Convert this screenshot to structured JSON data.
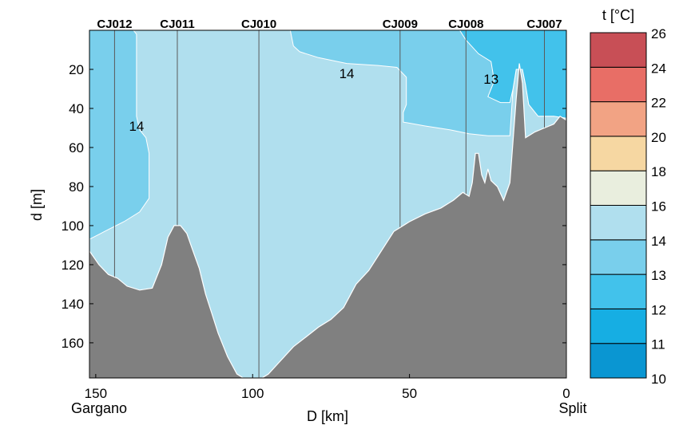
{
  "chart_data": {
    "type": "section contour",
    "xlabel": "D [km]",
    "ylabel": "d [m]",
    "xlim": [
      152,
      0
    ],
    "ylim": [
      0,
      178
    ],
    "xticks": [
      150,
      100,
      50,
      0
    ],
    "yticks": [
      20,
      40,
      60,
      80,
      100,
      120,
      140,
      160
    ],
    "endpoint_labels": {
      "left": "Gargano",
      "right": "Split"
    },
    "stations": [
      {
        "name": "CJ012",
        "x": 144
      },
      {
        "name": "CJ011",
        "x": 124
      },
      {
        "name": "CJ010",
        "x": 98
      },
      {
        "name": "CJ009",
        "x": 53
      },
      {
        "name": "CJ008",
        "x": 32
      },
      {
        "name": "CJ007",
        "x": 7
      }
    ],
    "contour_labels": [
      {
        "text": "14",
        "x": 70,
        "y": 22
      },
      {
        "text": "13",
        "x": 24,
        "y": 25
      },
      {
        "text": "14",
        "x": 137,
        "y": 49
      }
    ],
    "bathymetry": [
      [
        152,
        113
      ],
      [
        149,
        120
      ],
      [
        146,
        125
      ],
      [
        143,
        127
      ],
      [
        140,
        131
      ],
      [
        136,
        133
      ],
      [
        132,
        132
      ],
      [
        129,
        120
      ],
      [
        127,
        106
      ],
      [
        125,
        100
      ],
      [
        123,
        100
      ],
      [
        121,
        104
      ],
      [
        119,
        113
      ],
      [
        117,
        122
      ],
      [
        115,
        135
      ],
      [
        113,
        145
      ],
      [
        111,
        155
      ],
      [
        108,
        167
      ],
      [
        105,
        176
      ],
      [
        103,
        178
      ],
      [
        97,
        178
      ],
      [
        95,
        176
      ],
      [
        91,
        169
      ],
      [
        87,
        162
      ],
      [
        83,
        157
      ],
      [
        79,
        152
      ],
      [
        75,
        148
      ],
      [
        71,
        142
      ],
      [
        67,
        130
      ],
      [
        63,
        123
      ],
      [
        59,
        113
      ],
      [
        55,
        103
      ],
      [
        50,
        98
      ],
      [
        45,
        94
      ],
      [
        40,
        91
      ],
      [
        36,
        87
      ],
      [
        33,
        83
      ],
      [
        31,
        85
      ],
      [
        30,
        78
      ],
      [
        29,
        63
      ],
      [
        28,
        63
      ],
      [
        27,
        74
      ],
      [
        26,
        78
      ],
      [
        25,
        71
      ],
      [
        24,
        77
      ],
      [
        22,
        80
      ],
      [
        20,
        87
      ],
      [
        18,
        78
      ],
      [
        16,
        35
      ],
      [
        15,
        17
      ],
      [
        14,
        27
      ],
      [
        13,
        55
      ],
      [
        10,
        52
      ],
      [
        7,
        50
      ],
      [
        4,
        48
      ],
      [
        2,
        44
      ],
      [
        0,
        46
      ]
    ],
    "isotherm_14": [
      [
        152,
        107
      ],
      [
        146,
        102
      ],
      [
        141,
        98
      ],
      [
        136,
        93
      ],
      [
        133,
        86
      ],
      [
        133,
        63
      ],
      [
        134,
        55
      ],
      [
        136,
        51
      ],
      [
        137,
        44
      ],
      [
        137,
        24
      ],
      [
        137,
        2
      ],
      [
        138,
        0
      ],
      [
        152,
        0
      ]
    ],
    "isotherm_14_right": [
      [
        88,
        0
      ],
      [
        87,
        8
      ],
      [
        85,
        11
      ],
      [
        79,
        14
      ],
      [
        70,
        17
      ],
      [
        60,
        18
      ],
      [
        54,
        19
      ],
      [
        51,
        24
      ],
      [
        51,
        38
      ],
      [
        52,
        42
      ],
      [
        52,
        47
      ],
      [
        45,
        49
      ],
      [
        37,
        51
      ],
      [
        31,
        53
      ],
      [
        25,
        54
      ],
      [
        18,
        54
      ],
      [
        17,
        30
      ],
      [
        16,
        20
      ],
      [
        14,
        20
      ],
      [
        13,
        28
      ],
      [
        12,
        38
      ],
      [
        9,
        44
      ],
      [
        4,
        44
      ],
      [
        0,
        45
      ],
      [
        0,
        0
      ]
    ],
    "isotherm_13": [
      [
        34,
        0
      ],
      [
        32,
        5
      ],
      [
        28,
        12
      ],
      [
        24,
        16
      ],
      [
        23,
        26
      ],
      [
        24,
        30
      ],
      [
        25,
        34
      ],
      [
        21,
        37
      ],
      [
        18,
        37
      ],
      [
        17,
        30
      ],
      [
        16,
        20
      ],
      [
        14,
        20
      ],
      [
        13,
        28
      ],
      [
        12,
        38
      ],
      [
        9,
        44
      ],
      [
        4,
        44
      ],
      [
        0,
        45
      ],
      [
        0,
        0
      ]
    ],
    "colorbar": {
      "label": "t [°C]",
      "levels": [
        10,
        11,
        12,
        13,
        14,
        16,
        18,
        20,
        22,
        24,
        26
      ],
      "colors": [
        "#0a96d2",
        "#16aee3",
        "#42c2eb",
        "#79cfec",
        "#b0dfee",
        "#e9eede",
        "#f6d7a2",
        "#f2a384",
        "#e86e66",
        "#c84f56",
        "#ab3648"
      ]
    }
  },
  "colors": {
    "bottom": "#808080",
    "frame": "#000000",
    "station_line": "#5a5a5a"
  }
}
